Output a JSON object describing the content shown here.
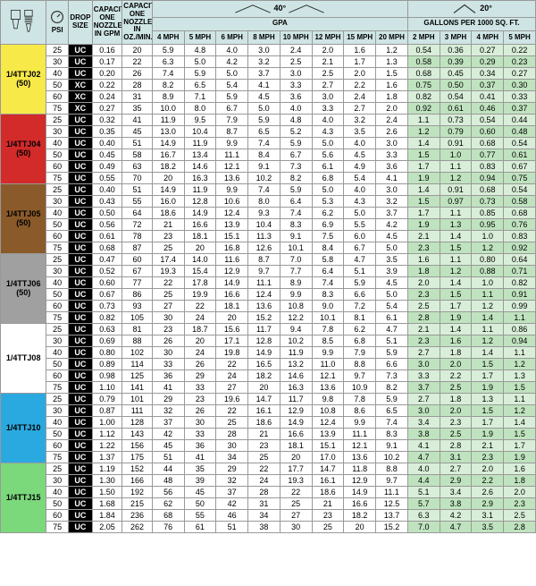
{
  "header": {
    "psi": "PSI",
    "drop_size": "DROP SIZE",
    "cap_gpm": "CAPACITY ONE NOZZLE IN GPM",
    "cap_oz": "CAPACITY ONE NOZZLE IN OZ./MIN.",
    "angle40": "40°",
    "angle20": "20°",
    "gpa": "GPA",
    "gal_per_1000": "GALLONS PER 1000 SQ. FT.",
    "gpa_speeds": [
      "4 MPH",
      "5 MPH",
      "6 MPH",
      "8 MPH",
      "10 MPH",
      "12 MPH",
      "15 MPH",
      "20 MPH"
    ],
    "gal_speeds": [
      "2 MPH",
      "3 MPH",
      "4 MPH",
      "5 MPH"
    ]
  },
  "palette": {
    "hdr_bg": "#cfe5e5",
    "drop_bg": "#000000",
    "drop_fg": "#ffffff",
    "gal_bg_light": "#d8eed8",
    "gal_bg_dark": "#bfe3bf"
  },
  "groups": [
    {
      "label_top": "1/4TTJ02",
      "label_bot": "(50)",
      "label_bg": "#f7e948",
      "rows": [
        {
          "psi": "25",
          "drop": "UC",
          "gpm": "0.16",
          "oz": "20",
          "gpa": [
            "5.9",
            "4.8",
            "4.0",
            "3.0",
            "2.4",
            "2.0",
            "1.6",
            "1.2"
          ],
          "gal": [
            "0.54",
            "0.36",
            "0.27",
            "0.22"
          ]
        },
        {
          "psi": "30",
          "drop": "UC",
          "gpm": "0.17",
          "oz": "22",
          "gpa": [
            "6.3",
            "5.0",
            "4.2",
            "3.2",
            "2.5",
            "2.1",
            "1.7",
            "1.3"
          ],
          "gal": [
            "0.58",
            "0.39",
            "0.29",
            "0.23"
          ]
        },
        {
          "psi": "40",
          "drop": "UC",
          "gpm": "0.20",
          "oz": "26",
          "gpa": [
            "7.4",
            "5.9",
            "5.0",
            "3.7",
            "3.0",
            "2.5",
            "2.0",
            "1.5"
          ],
          "gal": [
            "0.68",
            "0.45",
            "0.34",
            "0.27"
          ]
        },
        {
          "psi": "50",
          "drop": "XC",
          "gpm": "0.22",
          "oz": "28",
          "gpa": [
            "8.2",
            "6.5",
            "5.4",
            "4.1",
            "3.3",
            "2.7",
            "2.2",
            "1.6"
          ],
          "gal": [
            "0.75",
            "0.50",
            "0.37",
            "0.30"
          ]
        },
        {
          "psi": "60",
          "drop": "XC",
          "gpm": "0.24",
          "oz": "31",
          "gpa": [
            "8.9",
            "7.1",
            "5.9",
            "4.5",
            "3.6",
            "3.0",
            "2.4",
            "1.8"
          ],
          "gal": [
            "0.82",
            "0.54",
            "0.41",
            "0.33"
          ]
        },
        {
          "psi": "75",
          "drop": "XC",
          "gpm": "0.27",
          "oz": "35",
          "gpa": [
            "10.0",
            "8.0",
            "6.7",
            "5.0",
            "4.0",
            "3.3",
            "2.7",
            "2.0"
          ],
          "gal": [
            "0.92",
            "0.61",
            "0.46",
            "0.37"
          ]
        }
      ]
    },
    {
      "label_top": "1/4TTJ04",
      "label_bot": "(50)",
      "label_bg": "#d32a2a",
      "rows": [
        {
          "psi": "25",
          "drop": "UC",
          "gpm": "0.32",
          "oz": "41",
          "gpa": [
            "11.9",
            "9.5",
            "7.9",
            "5.9",
            "4.8",
            "4.0",
            "3.2",
            "2.4"
          ],
          "gal": [
            "1.1",
            "0.73",
            "0.54",
            "0.44"
          ]
        },
        {
          "psi": "30",
          "drop": "UC",
          "gpm": "0.35",
          "oz": "45",
          "gpa": [
            "13.0",
            "10.4",
            "8.7",
            "6.5",
            "5.2",
            "4.3",
            "3.5",
            "2.6"
          ],
          "gal": [
            "1.2",
            "0.79",
            "0.60",
            "0.48"
          ]
        },
        {
          "psi": "40",
          "drop": "UC",
          "gpm": "0.40",
          "oz": "51",
          "gpa": [
            "14.9",
            "11.9",
            "9.9",
            "7.4",
            "5.9",
            "5.0",
            "4.0",
            "3.0"
          ],
          "gal": [
            "1.4",
            "0.91",
            "0.68",
            "0.54"
          ]
        },
        {
          "psi": "50",
          "drop": "UC",
          "gpm": "0.45",
          "oz": "58",
          "gpa": [
            "16.7",
            "13.4",
            "11.1",
            "8.4",
            "6.7",
            "5.6",
            "4.5",
            "3.3"
          ],
          "gal": [
            "1.5",
            "1.0",
            "0.77",
            "0.61"
          ]
        },
        {
          "psi": "60",
          "drop": "UC",
          "gpm": "0.49",
          "oz": "63",
          "gpa": [
            "18.2",
            "14.6",
            "12.1",
            "9.1",
            "7.3",
            "6.1",
            "4.9",
            "3.6"
          ],
          "gal": [
            "1.7",
            "1.1",
            "0.83",
            "0.67"
          ]
        },
        {
          "psi": "75",
          "drop": "UC",
          "gpm": "0.55",
          "oz": "70",
          "gpa": [
            "20",
            "16.3",
            "13.6",
            "10.2",
            "8.2",
            "6.8",
            "5.4",
            "4.1"
          ],
          "gal": [
            "1.9",
            "1.2",
            "0.94",
            "0.75"
          ]
        }
      ]
    },
    {
      "label_top": "1/4TTJ05",
      "label_bot": "(50)",
      "label_bg": "#8a5a2a",
      "rows": [
        {
          "psi": "25",
          "drop": "UC",
          "gpm": "0.40",
          "oz": "51",
          "gpa": [
            "14.9",
            "11.9",
            "9.9",
            "7.4",
            "5.9",
            "5.0",
            "4.0",
            "3.0"
          ],
          "gal": [
            "1.4",
            "0.91",
            "0.68",
            "0.54"
          ]
        },
        {
          "psi": "30",
          "drop": "UC",
          "gpm": "0.43",
          "oz": "55",
          "gpa": [
            "16.0",
            "12.8",
            "10.6",
            "8.0",
            "6.4",
            "5.3",
            "4.3",
            "3.2"
          ],
          "gal": [
            "1.5",
            "0.97",
            "0.73",
            "0.58"
          ]
        },
        {
          "psi": "40",
          "drop": "UC",
          "gpm": "0.50",
          "oz": "64",
          "gpa": [
            "18.6",
            "14.9",
            "12.4",
            "9.3",
            "7.4",
            "6.2",
            "5.0",
            "3.7"
          ],
          "gal": [
            "1.7",
            "1.1",
            "0.85",
            "0.68"
          ]
        },
        {
          "psi": "50",
          "drop": "UC",
          "gpm": "0.56",
          "oz": "72",
          "gpa": [
            "21",
            "16.6",
            "13.9",
            "10.4",
            "8.3",
            "6.9",
            "5.5",
            "4.2"
          ],
          "gal": [
            "1.9",
            "1.3",
            "0.95",
            "0.76"
          ]
        },
        {
          "psi": "60",
          "drop": "UC",
          "gpm": "0.61",
          "oz": "78",
          "gpa": [
            "23",
            "18.1",
            "15.1",
            "11.3",
            "9.1",
            "7.5",
            "6.0",
            "4.5"
          ],
          "gal": [
            "2.1",
            "1.4",
            "1.0",
            "0.83"
          ]
        },
        {
          "psi": "75",
          "drop": "UC",
          "gpm": "0.68",
          "oz": "87",
          "gpa": [
            "25",
            "20",
            "16.8",
            "12.6",
            "10.1",
            "8.4",
            "6.7",
            "5.0"
          ],
          "gal": [
            "2.3",
            "1.5",
            "1.2",
            "0.92"
          ]
        }
      ]
    },
    {
      "label_top": "1/4TTJ06",
      "label_bot": "(50)",
      "label_bg": "#a0a0a0",
      "rows": [
        {
          "psi": "25",
          "drop": "UC",
          "gpm": "0.47",
          "oz": "60",
          "gpa": [
            "17.4",
            "14.0",
            "11.6",
            "8.7",
            "7.0",
            "5.8",
            "4.7",
            "3.5"
          ],
          "gal": [
            "1.6",
            "1.1",
            "0.80",
            "0.64"
          ]
        },
        {
          "psi": "30",
          "drop": "UC",
          "gpm": "0.52",
          "oz": "67",
          "gpa": [
            "19.3",
            "15.4",
            "12.9",
            "9.7",
            "7.7",
            "6.4",
            "5.1",
            "3.9"
          ],
          "gal": [
            "1.8",
            "1.2",
            "0.88",
            "0.71"
          ]
        },
        {
          "psi": "40",
          "drop": "UC",
          "gpm": "0.60",
          "oz": "77",
          "gpa": [
            "22",
            "17.8",
            "14.9",
            "11.1",
            "8.9",
            "7.4",
            "5.9",
            "4.5"
          ],
          "gal": [
            "2.0",
            "1.4",
            "1.0",
            "0.82"
          ]
        },
        {
          "psi": "50",
          "drop": "UC",
          "gpm": "0.67",
          "oz": "86",
          "gpa": [
            "25",
            "19.9",
            "16.6",
            "12.4",
            "9.9",
            "8.3",
            "6.6",
            "5.0"
          ],
          "gal": [
            "2.3",
            "1.5",
            "1.1",
            "0.91"
          ]
        },
        {
          "psi": "60",
          "drop": "UC",
          "gpm": "0.73",
          "oz": "93",
          "gpa": [
            "27",
            "22",
            "18.1",
            "13.6",
            "10.8",
            "9.0",
            "7.2",
            "5.4"
          ],
          "gal": [
            "2.5",
            "1.7",
            "1.2",
            "0.99"
          ]
        },
        {
          "psi": "75",
          "drop": "UC",
          "gpm": "0.82",
          "oz": "105",
          "gpa": [
            "30",
            "24",
            "20",
            "15.2",
            "12.2",
            "10.1",
            "8.1",
            "6.1"
          ],
          "gal": [
            "2.8",
            "1.9",
            "1.4",
            "1.1"
          ]
        }
      ]
    },
    {
      "label_top": "1/4TTJ08",
      "label_bot": "",
      "label_bg": "#ffffff",
      "rows": [
        {
          "psi": "25",
          "drop": "UC",
          "gpm": "0.63",
          "oz": "81",
          "gpa": [
            "23",
            "18.7",
            "15.6",
            "11.7",
            "9.4",
            "7.8",
            "6.2",
            "4.7"
          ],
          "gal": [
            "2.1",
            "1.4",
            "1.1",
            "0.86"
          ]
        },
        {
          "psi": "30",
          "drop": "UC",
          "gpm": "0.69",
          "oz": "88",
          "gpa": [
            "26",
            "20",
            "17.1",
            "12.8",
            "10.2",
            "8.5",
            "6.8",
            "5.1"
          ],
          "gal": [
            "2.3",
            "1.6",
            "1.2",
            "0.94"
          ]
        },
        {
          "psi": "40",
          "drop": "UC",
          "gpm": "0.80",
          "oz": "102",
          "gpa": [
            "30",
            "24",
            "19.8",
            "14.9",
            "11.9",
            "9.9",
            "7.9",
            "5.9"
          ],
          "gal": [
            "2.7",
            "1.8",
            "1.4",
            "1.1"
          ]
        },
        {
          "psi": "50",
          "drop": "UC",
          "gpm": "0.89",
          "oz": "114",
          "gpa": [
            "33",
            "26",
            "22",
            "16.5",
            "13.2",
            "11.0",
            "8.8",
            "6.6"
          ],
          "gal": [
            "3.0",
            "2.0",
            "1.5",
            "1.2"
          ]
        },
        {
          "psi": "60",
          "drop": "UC",
          "gpm": "0.98",
          "oz": "125",
          "gpa": [
            "36",
            "29",
            "24",
            "18.2",
            "14.6",
            "12.1",
            "9.7",
            "7.3"
          ],
          "gal": [
            "3.3",
            "2.2",
            "1.7",
            "1.3"
          ]
        },
        {
          "psi": "75",
          "drop": "UC",
          "gpm": "1.10",
          "oz": "141",
          "gpa": [
            "41",
            "33",
            "27",
            "20",
            "16.3",
            "13.6",
            "10.9",
            "8.2"
          ],
          "gal": [
            "3.7",
            "2.5",
            "1.9",
            "1.5"
          ]
        }
      ]
    },
    {
      "label_top": "1/4TTJ10",
      "label_bot": "",
      "label_bg": "#2aa9e0",
      "rows": [
        {
          "psi": "25",
          "drop": "UC",
          "gpm": "0.79",
          "oz": "101",
          "gpa": [
            "29",
            "23",
            "19.6",
            "14.7",
            "11.7",
            "9.8",
            "7.8",
            "5.9"
          ],
          "gal": [
            "2.7",
            "1.8",
            "1.3",
            "1.1"
          ]
        },
        {
          "psi": "30",
          "drop": "UC",
          "gpm": "0.87",
          "oz": "111",
          "gpa": [
            "32",
            "26",
            "22",
            "16.1",
            "12.9",
            "10.8",
            "8.6",
            "6.5"
          ],
          "gal": [
            "3.0",
            "2.0",
            "1.5",
            "1.2"
          ]
        },
        {
          "psi": "40",
          "drop": "UC",
          "gpm": "1.00",
          "oz": "128",
          "gpa": [
            "37",
            "30",
            "25",
            "18.6",
            "14.9",
            "12.4",
            "9.9",
            "7.4"
          ],
          "gal": [
            "3.4",
            "2.3",
            "1.7",
            "1.4"
          ]
        },
        {
          "psi": "50",
          "drop": "UC",
          "gpm": "1.12",
          "oz": "143",
          "gpa": [
            "42",
            "33",
            "28",
            "21",
            "16.6",
            "13.9",
            "11.1",
            "8.3"
          ],
          "gal": [
            "3.8",
            "2.5",
            "1.9",
            "1.5"
          ]
        },
        {
          "psi": "60",
          "drop": "UC",
          "gpm": "1.22",
          "oz": "156",
          "gpa": [
            "45",
            "36",
            "30",
            "23",
            "18.1",
            "15.1",
            "12.1",
            "9.1"
          ],
          "gal": [
            "4.1",
            "2.8",
            "2.1",
            "1.7"
          ]
        },
        {
          "psi": "75",
          "drop": "UC",
          "gpm": "1.37",
          "oz": "175",
          "gpa": [
            "51",
            "41",
            "34",
            "25",
            "20",
            "17.0",
            "13.6",
            "10.2"
          ],
          "gal": [
            "4.7",
            "3.1",
            "2.3",
            "1.9"
          ]
        }
      ]
    },
    {
      "label_top": "1/4TTJ15",
      "label_bot": "",
      "label_bg": "#7bd87b",
      "rows": [
        {
          "psi": "25",
          "drop": "UC",
          "gpm": "1.19",
          "oz": "152",
          "gpa": [
            "44",
            "35",
            "29",
            "22",
            "17.7",
            "14.7",
            "11.8",
            "8.8"
          ],
          "gal": [
            "4.0",
            "2.7",
            "2.0",
            "1.6"
          ]
        },
        {
          "psi": "30",
          "drop": "UC",
          "gpm": "1.30",
          "oz": "166",
          "gpa": [
            "48",
            "39",
            "32",
            "24",
            "19.3",
            "16.1",
            "12.9",
            "9.7"
          ],
          "gal": [
            "4.4",
            "2.9",
            "2.2",
            "1.8"
          ]
        },
        {
          "psi": "40",
          "drop": "UC",
          "gpm": "1.50",
          "oz": "192",
          "gpa": [
            "56",
            "45",
            "37",
            "28",
            "22",
            "18.6",
            "14.9",
            "11.1"
          ],
          "gal": [
            "5.1",
            "3.4",
            "2.6",
            "2.0"
          ]
        },
        {
          "psi": "50",
          "drop": "UC",
          "gpm": "1.68",
          "oz": "215",
          "gpa": [
            "62",
            "50",
            "42",
            "31",
            "25",
            "21",
            "16.6",
            "12.5"
          ],
          "gal": [
            "5.7",
            "3.8",
            "2.9",
            "2.3"
          ]
        },
        {
          "psi": "60",
          "drop": "UC",
          "gpm": "1.84",
          "oz": "236",
          "gpa": [
            "68",
            "55",
            "46",
            "34",
            "27",
            "23",
            "18.2",
            "13.7"
          ],
          "gal": [
            "6.3",
            "4.2",
            "3.1",
            "2.5"
          ]
        },
        {
          "psi": "75",
          "drop": "UC",
          "gpm": "2.05",
          "oz": "262",
          "gpa": [
            "76",
            "61",
            "51",
            "38",
            "30",
            "25",
            "20",
            "15.2"
          ],
          "gal": [
            "7.0",
            "4.7",
            "3.5",
            "2.8"
          ]
        }
      ]
    }
  ]
}
